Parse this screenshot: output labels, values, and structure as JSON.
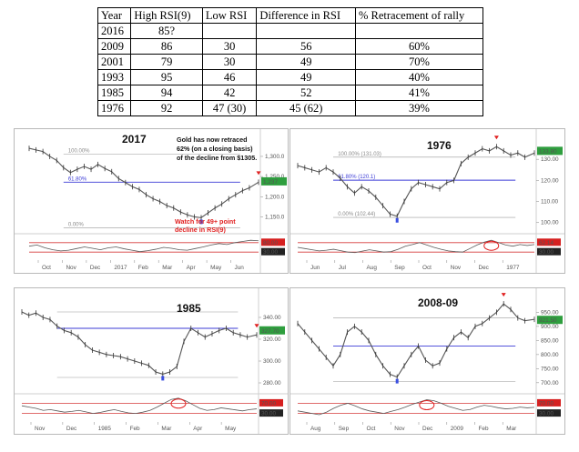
{
  "table": {
    "headers": [
      "Year",
      "High RSI(9)",
      "Low RSI",
      "Difference in RSI",
      "% Retracement of rally"
    ],
    "rows": [
      [
        "2016",
        "85?",
        "",
        "",
        ""
      ],
      [
        "2009",
        "86",
        "30",
        "56",
        "60%"
      ],
      [
        "2001",
        "79",
        "30",
        "49",
        "70%"
      ],
      [
        "1993",
        "95",
        "46",
        "49",
        "40%"
      ],
      [
        "1985",
        "94",
        "42",
        "52",
        "41%"
      ],
      [
        "1976",
        "92",
        "47 (30)",
        "45 (62)",
        "39%"
      ]
    ]
  },
  "chart_data": [
    {
      "type": "line",
      "title": "2017",
      "x_ticks": [
        "Oct",
        "Nov",
        "Dec",
        "2017",
        "Feb",
        "Mar",
        "Apr",
        "May",
        "Jun"
      ],
      "y_ticks": [
        1150,
        1200,
        1250,
        1300
      ],
      "ylim": [
        1115,
        1345
      ],
      "price_x": [
        0,
        0.03,
        0.06,
        0.09,
        0.12,
        0.15,
        0.18,
        0.21,
        0.24,
        0.27,
        0.3,
        0.33,
        0.36,
        0.39,
        0.42,
        0.45,
        0.48,
        0.51,
        0.54,
        0.57,
        0.6,
        0.63,
        0.66,
        0.69,
        0.72,
        0.75,
        0.78,
        0.81,
        0.84,
        0.87,
        0.9,
        0.93,
        0.96,
        1.0
      ],
      "price": [
        1320,
        1316,
        1312,
        1300,
        1290,
        1272,
        1260,
        1268,
        1275,
        1268,
        1280,
        1270,
        1262,
        1245,
        1235,
        1225,
        1218,
        1205,
        1195,
        1188,
        1178,
        1172,
        1162,
        1155,
        1150,
        1148,
        1160,
        1172,
        1182,
        1195,
        1205,
        1215,
        1222,
        1236
      ],
      "fib_levels": [
        {
          "label": "100.00%",
          "value": 1305
        },
        {
          "label": "61.80%",
          "value": 1236
        },
        {
          "label": "0.00%",
          "value": 1123
        }
      ],
      "last_price_label": "1,237",
      "last_price": 1237,
      "annotation": "Gold has now retraced 62% (on a closing basis) of the decline from $1305.",
      "annotation_lines": [
        "Gold has now retraced",
        "62% (on a closing basis)",
        "of the decline from $1305."
      ],
      "rsi_note": "Watch for 49+ point decline in RSI(9)",
      "rsi_note_lines": [
        "Watch for 49+ point",
        "decline in RSI(9)"
      ],
      "rsi_levels": [
        70,
        30
      ],
      "rsi_level_labels": [
        "80.00",
        "30.00"
      ],
      "rsi": [
        55,
        60,
        48,
        40,
        35,
        38,
        45,
        52,
        46,
        40,
        48,
        52,
        44,
        38,
        32,
        36,
        42,
        50,
        46,
        40,
        38,
        45,
        52,
        60,
        66,
        62,
        70,
        75,
        80,
        78
      ]
    },
    {
      "type": "line",
      "title": "1976",
      "x_ticks": [
        "Jun",
        "Jul",
        "Aug",
        "Sep",
        "Oct",
        "Nov",
        "Dec",
        "1977"
      ],
      "y_ticks": [
        100,
        110,
        120,
        130
      ],
      "ylim": [
        96,
        140
      ],
      "price_x": [
        0,
        0.03,
        0.06,
        0.09,
        0.12,
        0.15,
        0.18,
        0.21,
        0.24,
        0.27,
        0.3,
        0.33,
        0.36,
        0.39,
        0.42,
        0.45,
        0.48,
        0.51,
        0.54,
        0.57,
        0.6,
        0.63,
        0.66,
        0.69,
        0.72,
        0.75,
        0.78,
        0.81,
        0.84,
        0.87,
        0.9,
        0.93,
        0.96,
        1.0
      ],
      "price": [
        127,
        126,
        125,
        124,
        126,
        124,
        121,
        117,
        114,
        117,
        115,
        112,
        108,
        104,
        103,
        110,
        116,
        119,
        118,
        117,
        116,
        119,
        120,
        128,
        131,
        133,
        135,
        134,
        136,
        134,
        132,
        133,
        131,
        133
      ],
      "fib_levels": [
        {
          "label": "100.00% (131.03)",
          "value": 131.03
        },
        {
          "label": "61.80% (120.1)",
          "value": 120.1
        },
        {
          "label": "0.00% (102.44)",
          "value": 102.44
        }
      ],
      "last_price_label": "133.80",
      "last_price": 133.8,
      "rsi_levels": [
        70,
        30
      ],
      "rsi_level_labels": [
        "62.14",
        "30.00"
      ],
      "rsi": [
        50,
        45,
        40,
        35,
        38,
        42,
        36,
        30,
        28,
        34,
        40,
        35,
        30,
        32,
        42,
        55,
        62,
        70,
        60,
        50,
        42,
        35,
        32,
        30,
        45,
        60,
        72,
        80,
        70,
        60,
        55,
        62,
        58,
        62
      ]
    },
    {
      "type": "line",
      "title": "1985",
      "x_ticks": [
        "Nov",
        "Dec",
        "1985",
        "Feb",
        "Mar",
        "Apr",
        "May"
      ],
      "y_ticks": [
        280,
        300,
        320,
        340
      ],
      "ylim": [
        275,
        355
      ],
      "price_x": [
        0,
        0.03,
        0.06,
        0.09,
        0.12,
        0.15,
        0.18,
        0.21,
        0.24,
        0.27,
        0.3,
        0.33,
        0.36,
        0.39,
        0.42,
        0.45,
        0.48,
        0.51,
        0.54,
        0.57,
        0.6,
        0.63,
        0.66,
        0.69,
        0.72,
        0.75,
        0.78,
        0.81,
        0.84,
        0.87,
        0.9,
        0.93,
        0.96,
        1.0
      ],
      "price": [
        345,
        342,
        344,
        340,
        338,
        332,
        328,
        326,
        322,
        315,
        310,
        308,
        306,
        305,
        304,
        302,
        300,
        298,
        296,
        290,
        288,
        290,
        295,
        318,
        330,
        326,
        322,
        325,
        328,
        330,
        326,
        324,
        322,
        324
      ],
      "fib_levels": [
        {
          "label": "",
          "value": 345
        },
        {
          "label": "",
          "value": 330
        },
        {
          "label": "",
          "value": 285
        }
      ],
      "last_price_label": "327.70",
      "last_price": 327.7,
      "rsi_levels": [
        70,
        30
      ],
      "rsi_level_labels": [
        "70.00",
        "30.00"
      ],
      "rsi": [
        60,
        55,
        50,
        42,
        45,
        40,
        35,
        38,
        42,
        36,
        30,
        34,
        40,
        45,
        38,
        32,
        30,
        35,
        42,
        55,
        70,
        85,
        90,
        80,
        65,
        50,
        42,
        45,
        52,
        48,
        44,
        40,
        45,
        48
      ]
    },
    {
      "type": "line",
      "title": "2008-09",
      "x_ticks": [
        "Aug",
        "Sep",
        "Oct",
        "Nov",
        "Dec",
        "2009",
        "Feb",
        "Mar"
      ],
      "y_ticks": [
        700,
        750,
        800,
        850,
        900,
        950
      ],
      "ylim": [
        680,
        990
      ],
      "price_x": [
        0,
        0.03,
        0.06,
        0.09,
        0.12,
        0.15,
        0.18,
        0.21,
        0.24,
        0.27,
        0.3,
        0.33,
        0.36,
        0.39,
        0.42,
        0.45,
        0.48,
        0.51,
        0.54,
        0.57,
        0.6,
        0.63,
        0.66,
        0.69,
        0.72,
        0.75,
        0.78,
        0.81,
        0.84,
        0.87,
        0.9,
        0.93,
        0.96,
        1.0
      ],
      "price": [
        910,
        880,
        850,
        820,
        790,
        760,
        800,
        880,
        900,
        880,
        850,
        800,
        760,
        730,
        720,
        760,
        800,
        830,
        780,
        760,
        770,
        820,
        860,
        880,
        860,
        900,
        910,
        930,
        950,
        980,
        960,
        930,
        920,
        925
      ],
      "fib_levels": [
        {
          "label": "",
          "value": 930
        },
        {
          "label": "",
          "value": 830
        },
        {
          "label": "",
          "value": 705
        }
      ],
      "last_price_label": "921.50",
      "last_price": 921.5,
      "rsi_levels": [
        70,
        30
      ],
      "rsi_level_labels": [
        "70.00",
        "30.00"
      ],
      "rsi": [
        40,
        35,
        30,
        25,
        35,
        50,
        62,
        70,
        60,
        48,
        40,
        35,
        30,
        38,
        45,
        55,
        66,
        75,
        84,
        80,
        70,
        58,
        50,
        42,
        45,
        55,
        62,
        58,
        52,
        48,
        50,
        55,
        52,
        54
      ]
    }
  ],
  "colors": {
    "price_line": "#555555",
    "fib_line": "#3b3bd6",
    "guide_line": "#9a9a9a",
    "rsi_line": "#5a5a5a",
    "rsi_level": "#d63b3b",
    "marker_red": "#e02020",
    "marker_blue": "#3b4fe0",
    "label_green": "#2e9e3e",
    "label_red": "#d62020",
    "note_red": "#e02020"
  }
}
